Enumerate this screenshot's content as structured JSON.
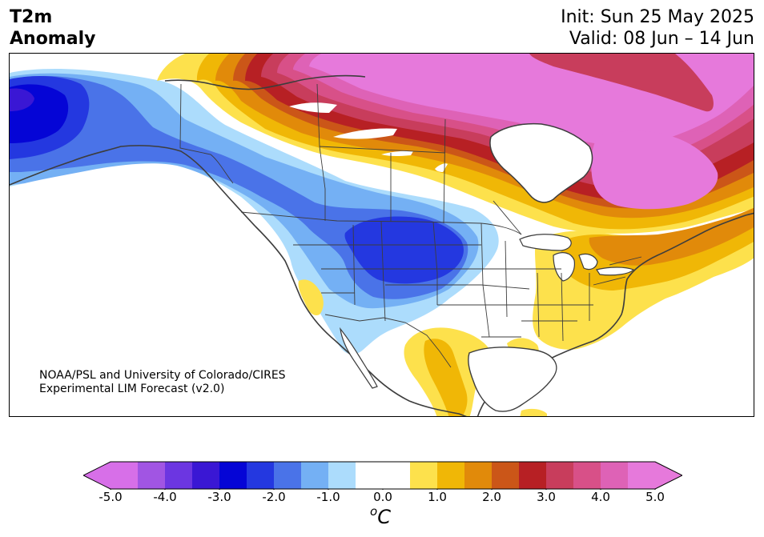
{
  "header": {
    "title_line1": "T2m",
    "title_line2": "Anomaly",
    "init_text": "Init: Sun 25 May 2025",
    "valid_text": "Valid: 08 Jun – 14 Jun"
  },
  "credit": {
    "line1": "NOAA/PSL and University of Colorado/CIRES",
    "line2": "Experimental LIM Forecast (v2.0)"
  },
  "map": {
    "variable": "2-m temperature anomaly",
    "region": "North America",
    "features": [
      "coastlines",
      "country borders",
      "US states",
      "Canadian provinces",
      "Great Lakes"
    ],
    "anomaly_regions": [
      {
        "name": "Alaska cold core",
        "anomaly_c": -2.5
      },
      {
        "name": "Northern Plains / Montana-Dakotas cold core",
        "anomaly_c": -2.0
      },
      {
        "name": "Northern Canada / Nunavut warm core",
        "anomaly_c": 5.0
      },
      {
        "name": "Quebec / Labrador warm core",
        "anomaly_c": 5.0
      },
      {
        "name": "Great Lakes / Northeast US warm",
        "anomaly_c": 1.5
      },
      {
        "name": "Southeast US warm",
        "anomaly_c": 1.0
      },
      {
        "name": "Mexico warm",
        "anomaly_c": 1.5
      }
    ]
  },
  "colorbar": {
    "unit_base": "C",
    "unit_sup": "o",
    "extend": "both",
    "colors": [
      "#d76fe8",
      "#a155e3",
      "#6c36e1",
      "#3a17d4",
      "#0505d6",
      "#2438e0",
      "#4a73e8",
      "#74b0f4",
      "#acdcfc",
      "#ffffff",
      "#ffffff",
      "#fde14c",
      "#f0b706",
      "#e18a0a",
      "#cb5618",
      "#b72024",
      "#c83d5c",
      "#d85088",
      "#de62b6",
      "#e679db"
    ],
    "ticks": [
      "-5.0",
      "-4.0",
      "-3.0",
      "-2.0",
      "-1.0",
      "0.0",
      "1.0",
      "2.0",
      "3.0",
      "4.0",
      "5.0"
    ],
    "range": [
      -5.0,
      5.0
    ],
    "interval": 0.5
  }
}
